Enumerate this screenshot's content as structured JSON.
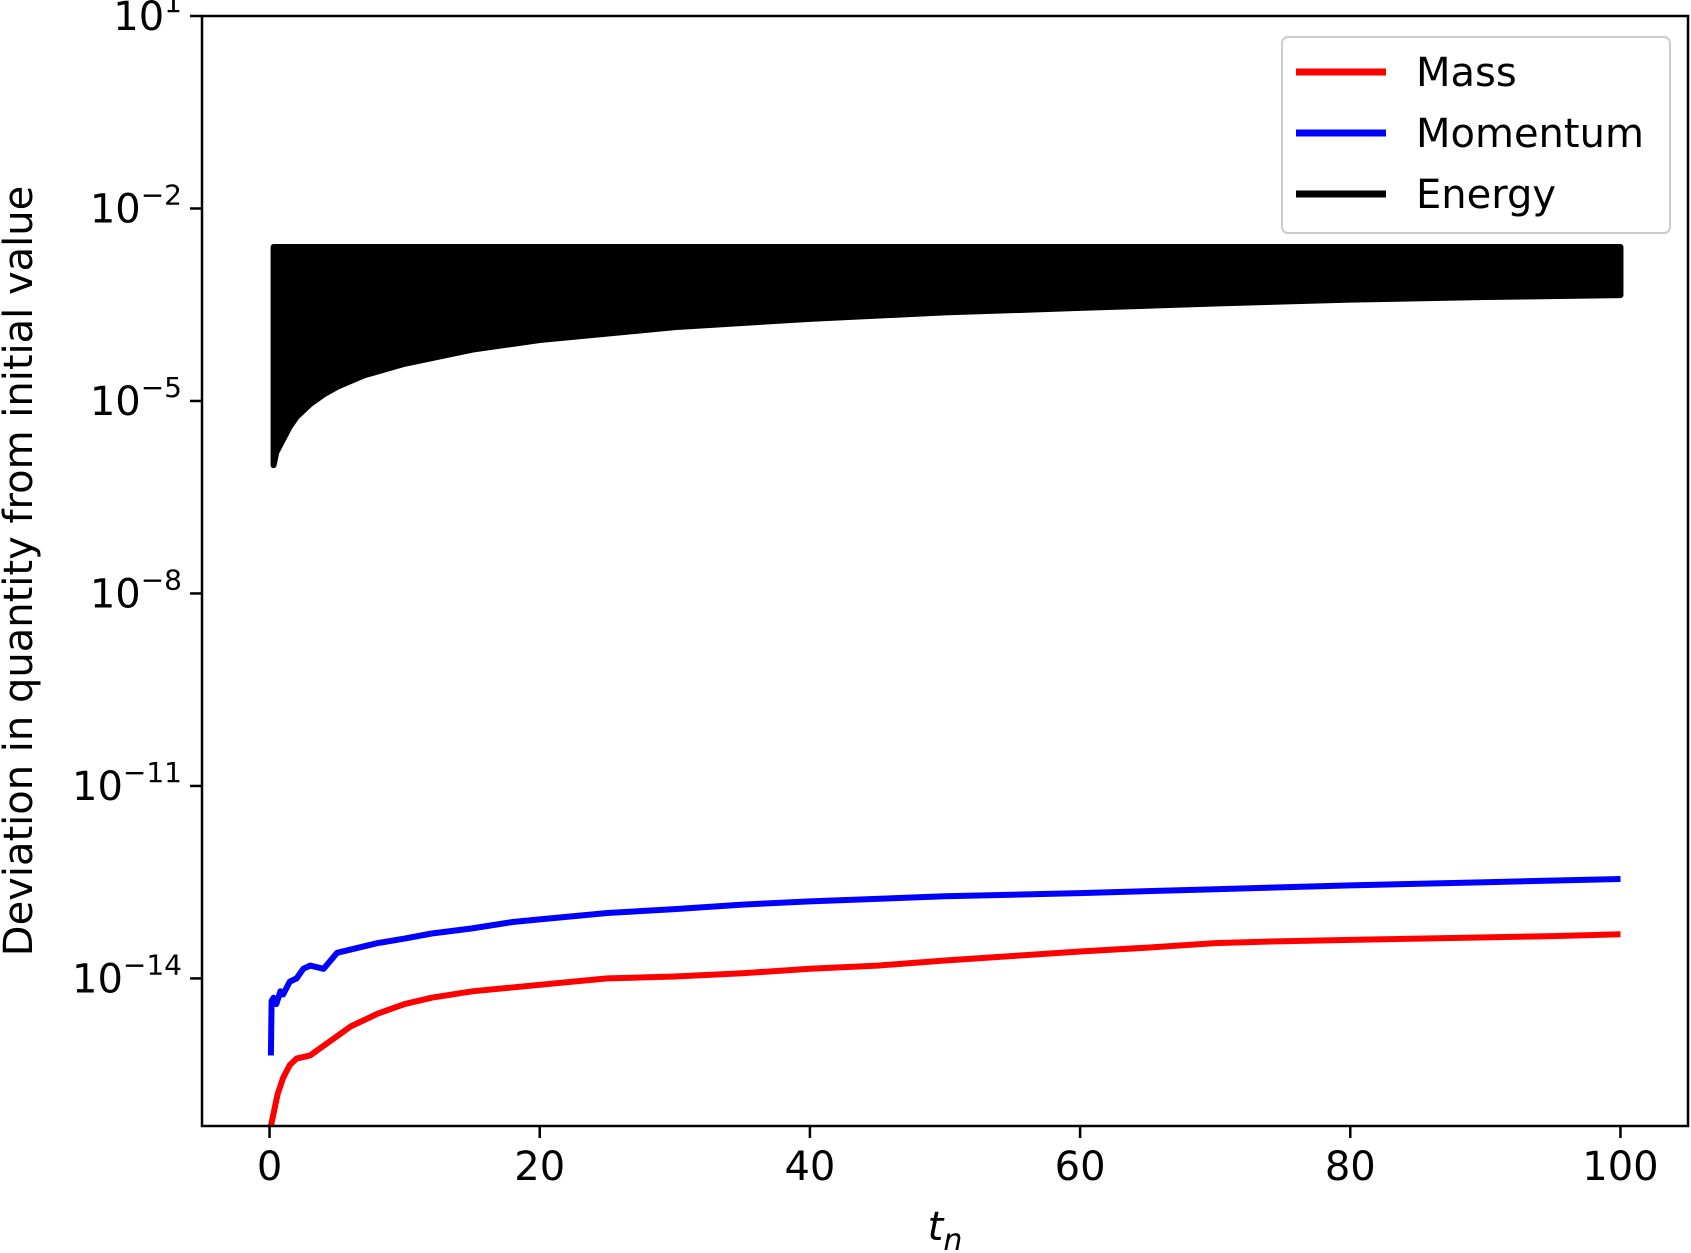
{
  "chart_data": {
    "type": "line",
    "title": "",
    "xlabel": "t",
    "xlabel_sub": "n",
    "ylabel": "Deviation in quantity from initial value",
    "yscale": "log",
    "xlim": [
      -5,
      105
    ],
    "ylim_log10": [
      -16.3,
      1
    ],
    "x_ticks": [
      0,
      20,
      40,
      60,
      80,
      100
    ],
    "y_ticks": [
      {
        "exp": 1,
        "base": "10",
        "power": "1"
      },
      {
        "exp": -2,
        "base": "10",
        "power": "−2"
      },
      {
        "exp": -5,
        "base": "10",
        "power": "−5"
      },
      {
        "exp": -8,
        "base": "10",
        "power": "−8"
      },
      {
        "exp": -11,
        "base": "10",
        "power": "−11"
      },
      {
        "exp": -14,
        "base": "10",
        "power": "−14"
      }
    ],
    "grid": false,
    "legend": "top-right",
    "series": [
      {
        "name": "Mass",
        "color": "#ff0000",
        "x": [
          0.1,
          0.3,
          0.6,
          1,
          1.5,
          2,
          3,
          4,
          5,
          6,
          8,
          10,
          12,
          15,
          20,
          25,
          30,
          35,
          40,
          45,
          50,
          55,
          60,
          65,
          70,
          75,
          80,
          85,
          90,
          95,
          100
        ],
        "log10_y": [
          -16.3,
          -16.1,
          -15.8,
          -15.55,
          -15.35,
          -15.25,
          -15.2,
          -15.05,
          -14.9,
          -14.75,
          -14.55,
          -14.4,
          -14.3,
          -14.2,
          -14.1,
          -14.0,
          -13.97,
          -13.92,
          -13.85,
          -13.8,
          -13.72,
          -13.65,
          -13.58,
          -13.52,
          -13.45,
          -13.42,
          -13.4,
          -13.38,
          -13.36,
          -13.34,
          -13.31
        ]
      },
      {
        "name": "Momentum",
        "color": "#0000ff",
        "x": [
          0.1,
          0.15,
          0.3,
          0.5,
          0.8,
          1,
          1.5,
          2,
          2.5,
          3,
          4,
          5,
          6,
          8,
          10,
          12,
          15,
          18,
          20,
          25,
          30,
          35,
          40,
          50,
          60,
          70,
          80,
          90,
          100
        ],
        "log10_y": [
          -15.2,
          -14.35,
          -14.3,
          -14.4,
          -14.2,
          -14.25,
          -14.05,
          -14.0,
          -13.85,
          -13.8,
          -13.85,
          -13.6,
          -13.55,
          -13.45,
          -13.38,
          -13.3,
          -13.22,
          -13.12,
          -13.08,
          -12.98,
          -12.92,
          -12.85,
          -12.8,
          -12.72,
          -12.67,
          -12.61,
          -12.55,
          -12.5,
          -12.45
        ]
      },
      {
        "name": "Energy",
        "color": "#000000",
        "upper_log10": -2.6,
        "lower_envelope": {
          "x": [
            0.3,
            0.5,
            1,
            1.5,
            2,
            3,
            4,
            5,
            7,
            10,
            15,
            20,
            30,
            40,
            50,
            60,
            70,
            80,
            90,
            100
          ],
          "log10_y": [
            -6.0,
            -5.8,
            -5.6,
            -5.4,
            -5.25,
            -5.05,
            -4.9,
            -4.78,
            -4.6,
            -4.42,
            -4.2,
            -4.05,
            -3.85,
            -3.72,
            -3.62,
            -3.55,
            -3.48,
            -3.42,
            -3.38,
            -3.35
          ]
        }
      }
    ]
  }
}
